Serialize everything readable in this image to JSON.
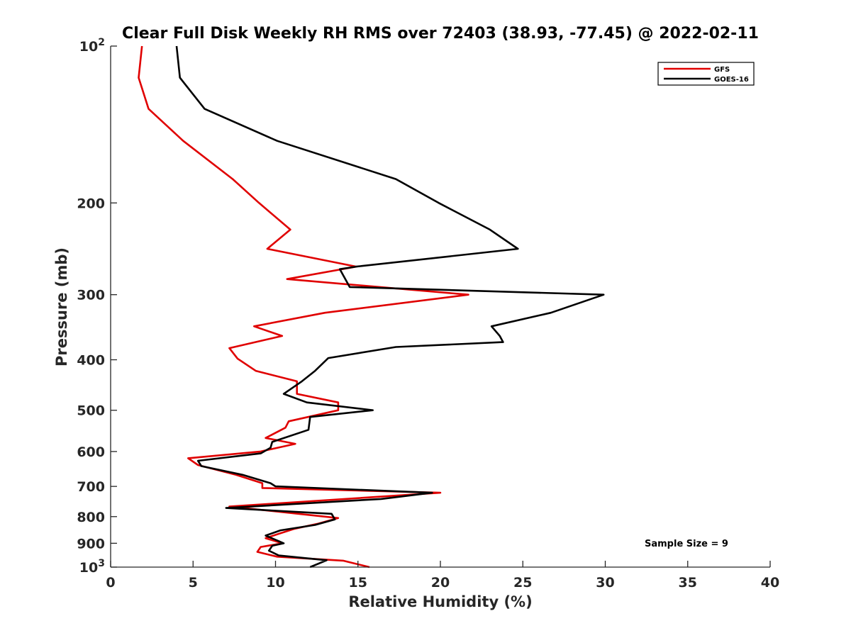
{
  "chart_data": {
    "type": "line",
    "title": "Clear Full Disk Weekly RH RMS over 72403 (38.93, -77.45) @ 2022-02-11",
    "xlabel": "Relative Humidity (%)",
    "ylabel": "Pressure (mb)",
    "xlim": [
      0,
      40
    ],
    "ylim": [
      100,
      1000
    ],
    "y_scale": "log",
    "y_reversed": true,
    "grid": false,
    "legend_position": "top-right",
    "x_ticks": [
      0,
      5,
      10,
      15,
      20,
      25,
      30,
      35,
      40
    ],
    "y_ticks": [
      {
        "value": 100,
        "base": "10",
        "exp": "2"
      },
      {
        "value": 200,
        "label": "200"
      },
      {
        "value": 300,
        "label": "300"
      },
      {
        "value": 400,
        "label": "400"
      },
      {
        "value": 500,
        "label": "500"
      },
      {
        "value": 600,
        "label": "600"
      },
      {
        "value": 700,
        "label": "700"
      },
      {
        "value": 800,
        "label": "800"
      },
      {
        "value": 900,
        "label": "900"
      },
      {
        "value": 1000,
        "base": "10",
        "exp": "3"
      }
    ],
    "annotation": "Sample Size = 9",
    "series": [
      {
        "name": "GFS",
        "color": "#e00000",
        "points": [
          [
            1.9,
            100
          ],
          [
            1.7,
            115
          ],
          [
            2.3,
            132
          ],
          [
            4.4,
            152
          ],
          [
            7.4,
            180
          ],
          [
            9.0,
            200
          ],
          [
            10.9,
            225
          ],
          [
            9.5,
            245
          ],
          [
            14.9,
            265
          ],
          [
            10.7,
            280
          ],
          [
            21.7,
            300
          ],
          [
            13.0,
            325
          ],
          [
            8.7,
            345
          ],
          [
            10.4,
            360
          ],
          [
            7.2,
            380
          ],
          [
            7.7,
            398
          ],
          [
            8.8,
            420
          ],
          [
            11.3,
            440
          ],
          [
            11.3,
            465
          ],
          [
            13.8,
            483
          ],
          [
            13.8,
            500
          ],
          [
            10.8,
            525
          ],
          [
            10.6,
            540
          ],
          [
            9.4,
            565
          ],
          [
            11.2,
            580
          ],
          [
            9.1,
            600
          ],
          [
            4.7,
            618
          ],
          [
            5.3,
            637
          ],
          [
            7.6,
            665
          ],
          [
            9.2,
            690
          ],
          [
            9.2,
            705
          ],
          [
            20.0,
            720
          ],
          [
            7.2,
            765
          ],
          [
            13.8,
            805
          ],
          [
            12.6,
            825
          ],
          [
            11.1,
            845
          ],
          [
            10.1,
            865
          ],
          [
            9.4,
            880
          ],
          [
            10.4,
            900
          ],
          [
            9.1,
            915
          ],
          [
            8.9,
            935
          ],
          [
            10.1,
            955
          ],
          [
            14.1,
            972
          ],
          [
            15.7,
            1000
          ]
        ]
      },
      {
        "name": "GOES-16",
        "color": "#000000",
        "points": [
          [
            4.0,
            100
          ],
          [
            4.2,
            115
          ],
          [
            5.7,
            132
          ],
          [
            10.1,
            152
          ],
          [
            17.3,
            180
          ],
          [
            19.9,
            200
          ],
          [
            23.0,
            225
          ],
          [
            24.7,
            245
          ],
          [
            14.9,
            265
          ],
          [
            13.9,
            268
          ],
          [
            14.5,
            290
          ],
          [
            29.9,
            300
          ],
          [
            26.7,
            325
          ],
          [
            23.1,
            345
          ],
          [
            23.6,
            360
          ],
          [
            23.8,
            370
          ],
          [
            17.3,
            378
          ],
          [
            13.2,
            397
          ],
          [
            12.4,
            420
          ],
          [
            11.6,
            440
          ],
          [
            10.5,
            465
          ],
          [
            11.9,
            483
          ],
          [
            15.9,
            500
          ],
          [
            12.1,
            515
          ],
          [
            12.0,
            545
          ],
          [
            9.8,
            575
          ],
          [
            9.7,
            590
          ],
          [
            9.1,
            605
          ],
          [
            5.3,
            625
          ],
          [
            5.5,
            640
          ],
          [
            8.0,
            665
          ],
          [
            9.7,
            690
          ],
          [
            10.0,
            700
          ],
          [
            19.5,
            720
          ],
          [
            16.4,
            740
          ],
          [
            7.0,
            770
          ],
          [
            13.4,
            790
          ],
          [
            13.6,
            810
          ],
          [
            12.4,
            830
          ],
          [
            10.3,
            850
          ],
          [
            9.4,
            870
          ],
          [
            10.5,
            900
          ],
          [
            9.8,
            910
          ],
          [
            9.6,
            930
          ],
          [
            10.2,
            950
          ],
          [
            13.1,
            970
          ],
          [
            12.1,
            1000
          ]
        ]
      }
    ]
  }
}
